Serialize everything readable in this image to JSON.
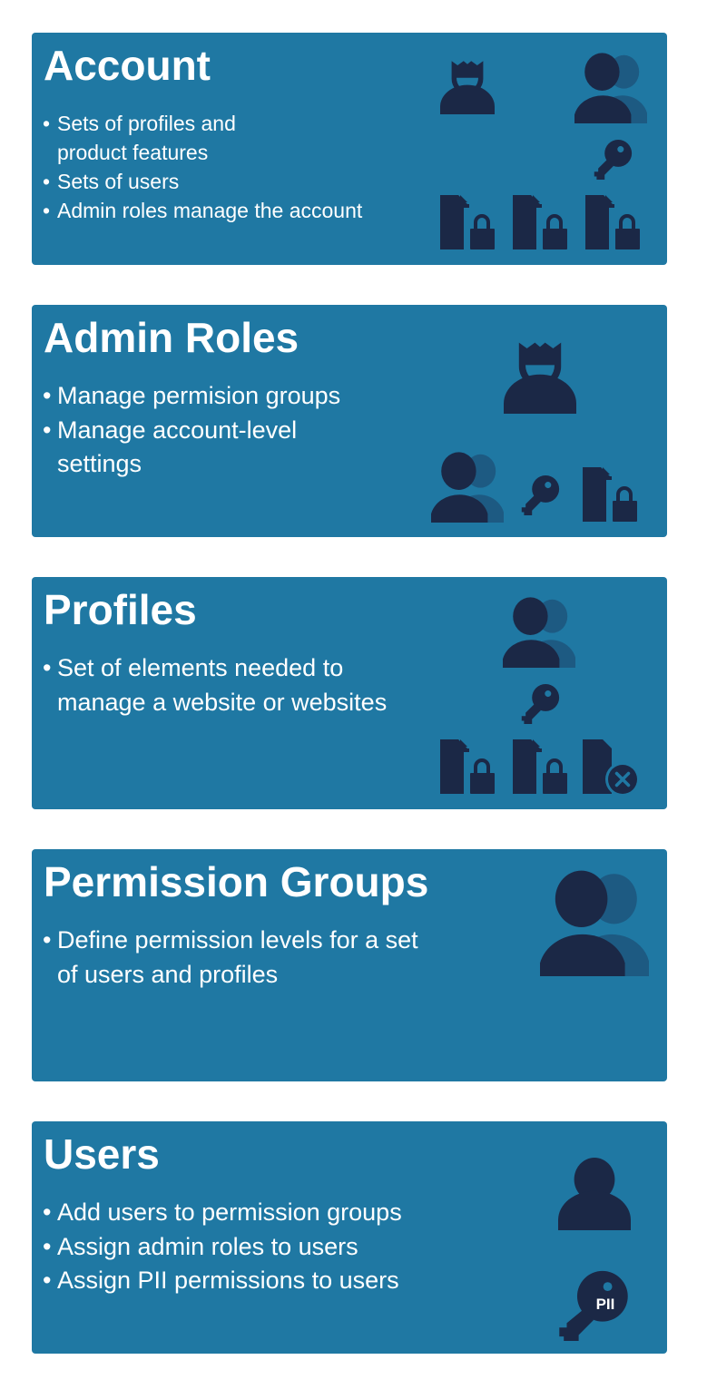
{
  "colors": {
    "card_bg": "#1f78a3",
    "icon_dark": "#1b2846",
    "icon_secondary": "#1d5a82",
    "white": "#ffffff"
  },
  "cards": [
    {
      "title": "Account",
      "bullets": [
        "Sets of profiles and product features",
        "Sets of users",
        "Admin roles manage the account"
      ],
      "icons": [
        "admin-person-icon",
        "users-group-icon",
        "key-icon",
        "locked-document-icon",
        "locked-document-icon",
        "locked-document-icon"
      ]
    },
    {
      "title": "Admin Roles",
      "bullets": [
        "Manage permision groups",
        "Manage account-level settings"
      ],
      "icons": [
        "admin-person-icon",
        "users-group-icon",
        "key-icon",
        "locked-document-icon"
      ]
    },
    {
      "title": "Profiles",
      "bullets": [
        "Set of elements needed to manage a website or websites"
      ],
      "icons": [
        "users-group-icon",
        "key-icon",
        "locked-document-icon",
        "locked-document-icon",
        "denied-document-icon"
      ]
    },
    {
      "title": "Permission Groups",
      "bullets": [
        "Define permission levels for a set of users and profiles"
      ],
      "icons": [
        "users-group-icon"
      ]
    },
    {
      "title": "Users",
      "bullets": [
        "Add users to permission groups",
        "Assign admin roles to users",
        "Assign PII permissions to users"
      ],
      "icons": [
        "person-icon",
        "pii-key-icon"
      ],
      "pii_label": "PII"
    }
  ]
}
